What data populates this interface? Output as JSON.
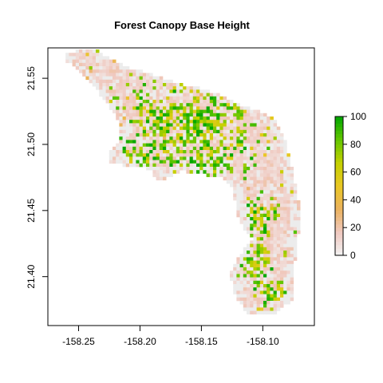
{
  "map": {
    "title": "Forest Canopy Base Height",
    "x_axis": {
      "range": [
        -158.275,
        -158.058
      ],
      "ticks": [
        -158.25,
        -158.2,
        -158.15,
        -158.1
      ],
      "tick_labels": [
        "-158.25",
        "-158.20",
        "-158.15",
        "-158.10"
      ]
    },
    "y_axis": {
      "range": [
        21.363,
        21.573
      ],
      "ticks": [
        21.4,
        21.45,
        21.5,
        21.55
      ],
      "tick_labels": [
        "21.40",
        "21.45",
        "21.50",
        "21.55"
      ]
    },
    "legend": {
      "placement": "right",
      "range": [
        0,
        100
      ],
      "ticks": [
        0,
        20,
        40,
        60,
        80,
        100
      ],
      "tick_labels": [
        "0",
        "20",
        "40",
        "60",
        "80",
        "100"
      ],
      "colors": [
        "#f2f2f2",
        "#f0c9c0",
        "#ebb25e",
        "#eac724",
        "#c4d000",
        "#63c600",
        "#00a600"
      ]
    },
    "nodata_color": "#ececec"
  }
}
